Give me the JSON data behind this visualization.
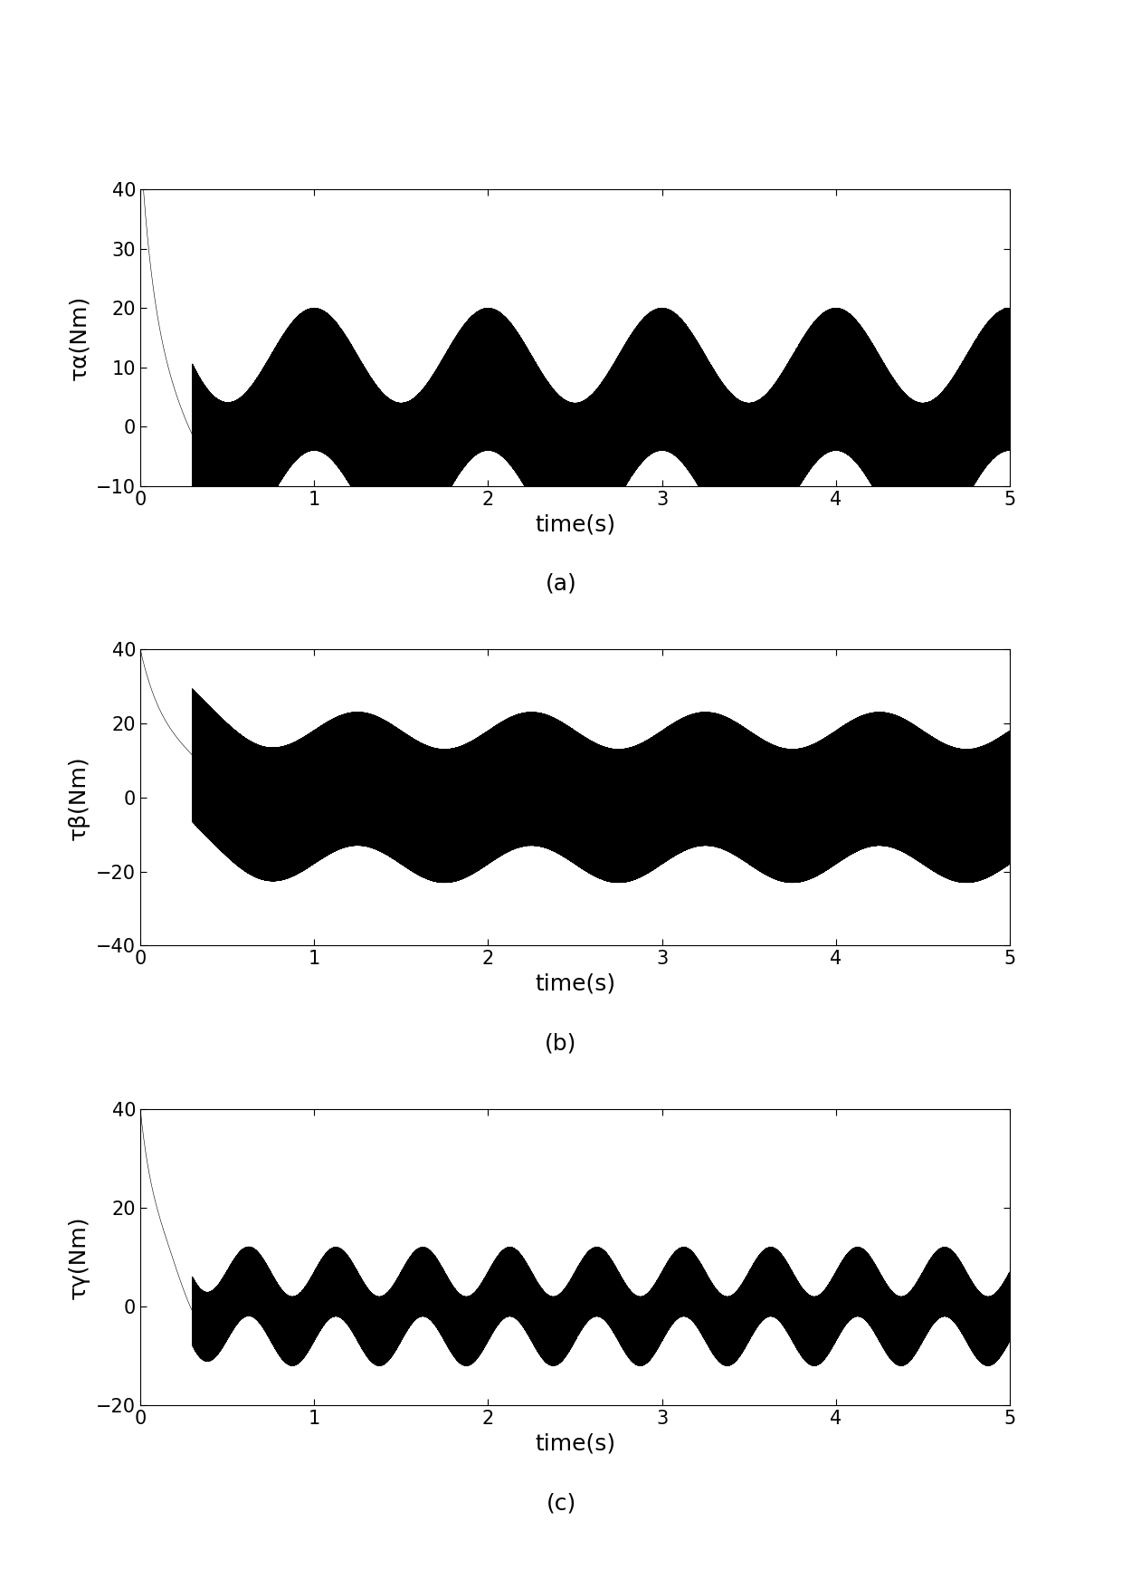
{
  "subplot_a": {
    "ylabel": "τα(Nm)",
    "xlabel": "time(s)",
    "caption": "(a)",
    "ylim": [
      -10,
      40
    ],
    "yticks": [
      -10,
      0,
      10,
      20,
      30,
      40
    ],
    "xlim": [
      0,
      5
    ],
    "xticks": [
      0,
      1,
      2,
      3,
      4,
      5
    ],
    "smooth_amp": 8.0,
    "smooth_freq": 1.0,
    "smooth_phase": 1.5707963,
    "transient_init": 40.0,
    "transient_decay": 12.0,
    "chatter_amp": 12.0,
    "chatter_density": 0.35
  },
  "subplot_b": {
    "ylabel": "τβ(Nm)",
    "xlabel": "time(s)",
    "caption": "(b)",
    "ylim": [
      -40,
      40
    ],
    "yticks": [
      -40,
      -20,
      0,
      20,
      40
    ],
    "xlim": [
      0,
      5
    ],
    "xticks": [
      0,
      1,
      2,
      3,
      4,
      5
    ],
    "smooth_amp": 5.0,
    "smooth_freq": 1.0,
    "smooth_phase": 0.0,
    "transient_init": 40.0,
    "transient_decay": 6.0,
    "chatter_amp": 18.0,
    "chatter_density": 0.3
  },
  "subplot_c": {
    "ylabel": "τγ(Nm)",
    "xlabel": "time(s)",
    "caption": "(c)",
    "ylim": [
      -20,
      40
    ],
    "yticks": [
      -20,
      0,
      20,
      40
    ],
    "xlim": [
      0,
      5
    ],
    "xticks": [
      0,
      1,
      2,
      3,
      4,
      5
    ],
    "smooth_amp": 5.0,
    "smooth_freq": 2.0,
    "smooth_phase": 0.0,
    "transient_init": 40.0,
    "transient_decay": 10.0,
    "chatter_amp": 7.0,
    "chatter_density": 0.5
  },
  "line_color": "#000000",
  "bg_color": "#ffffff",
  "figsize": [
    12.4,
    17.44
  ],
  "dpi": 100,
  "font_size_label": 18,
  "font_size_tick": 15,
  "font_size_caption": 18
}
